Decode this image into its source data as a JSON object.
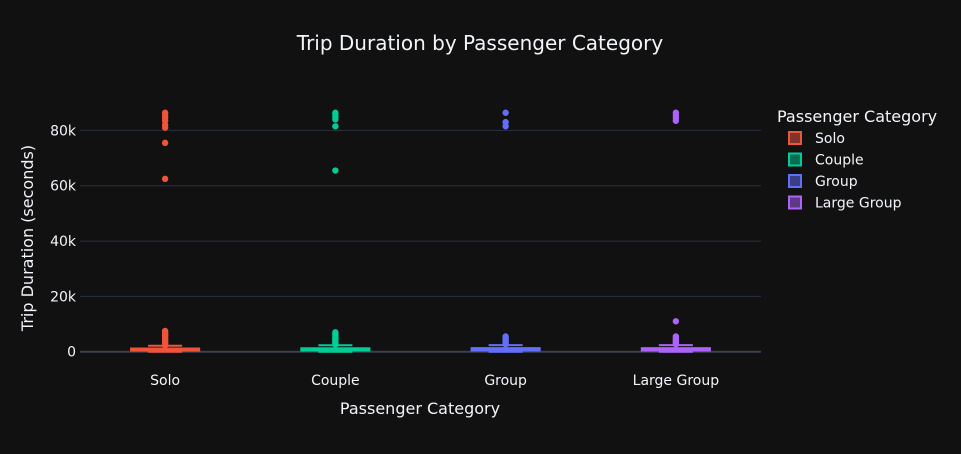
{
  "chart_data": {
    "type": "box",
    "title": "Trip Duration by Passenger Category",
    "xlabel": "Passenger Category",
    "ylabel": "Trip Duration (seconds)",
    "categories": [
      "Solo",
      "Couple",
      "Group",
      "Large Group"
    ],
    "ylim": [
      -3000,
      91000
    ],
    "yticks": [
      0,
      20000,
      40000,
      60000,
      80000
    ],
    "ytick_labels": [
      "0",
      "20k",
      "40k",
      "60k",
      "80k"
    ],
    "grid": true,
    "legend": {
      "title": "Passenger Category",
      "placement": "top-right"
    },
    "series": [
      {
        "name": "Solo",
        "color": "#ef553b",
        "box": {
          "q1": 400,
          "median": 700,
          "q3": 1150,
          "whisker_low": 0,
          "whisker_high": 2150
        },
        "outliers": [
          2400,
          2800,
          3200,
          3600,
          4000,
          4500,
          5000,
          5500,
          6000,
          6500,
          7000,
          7500,
          62500,
          75500,
          81000,
          82000,
          83500,
          84500,
          85500,
          86400
        ]
      },
      {
        "name": "Couple",
        "color": "#00cc96",
        "box": {
          "q1": 420,
          "median": 750,
          "q3": 1250,
          "whisker_low": 0,
          "whisker_high": 2350
        },
        "outliers": [
          2600,
          3000,
          3400,
          3800,
          4200,
          4700,
          5200,
          5700,
          6200,
          6700,
          7000,
          65500,
          81500,
          84000,
          85000,
          86000,
          86400
        ]
      },
      {
        "name": "Group",
        "color": "#636efa",
        "box": {
          "q1": 430,
          "median": 780,
          "q3": 1300,
          "whisker_low": 0,
          "whisker_high": 2400
        },
        "outliers": [
          2700,
          3100,
          3500,
          4000,
          4500,
          5000,
          5500,
          81500,
          83000,
          86400
        ]
      },
      {
        "name": "Large Group",
        "color": "#ab63fa",
        "box": {
          "q1": 420,
          "median": 760,
          "q3": 1280,
          "whisker_low": 0,
          "whisker_high": 2400
        },
        "outliers": [
          2700,
          3100,
          3500,
          4000,
          4500,
          5000,
          5500,
          11000,
          83500,
          84500,
          85500,
          86400
        ]
      }
    ]
  }
}
